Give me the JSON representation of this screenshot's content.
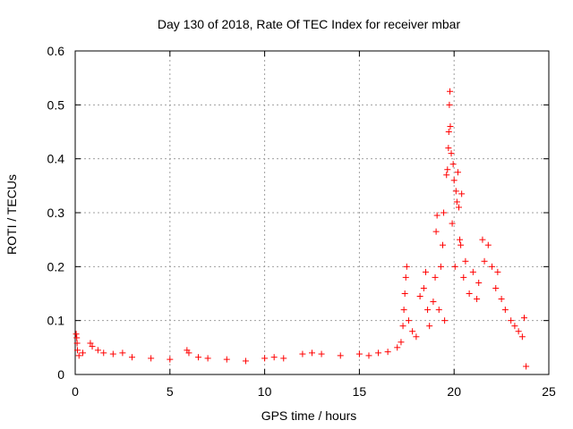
{
  "chart_data": {
    "type": "scatter",
    "title": "Day 130 of 2018, Rate Of TEC Index for receiver mbar",
    "xlabel": "GPS time / hours",
    "ylabel": "ROTI / TECUs",
    "xlim": [
      0,
      25
    ],
    "ylim": [
      0,
      0.6
    ],
    "xticks": [
      0,
      5,
      10,
      15,
      20,
      25
    ],
    "yticks": [
      0,
      0.1,
      0.2,
      0.3,
      0.4,
      0.5,
      0.6
    ],
    "grid": true,
    "marker": "+",
    "color": "#ff0000",
    "series": [
      {
        "name": "ROTI",
        "points": [
          [
            0.05,
            0.075
          ],
          [
            0.08,
            0.068
          ],
          [
            0.1,
            0.058
          ],
          [
            0.12,
            0.045
          ],
          [
            0.2,
            0.035
          ],
          [
            0.4,
            0.04
          ],
          [
            0.8,
            0.058
          ],
          [
            0.9,
            0.052
          ],
          [
            1.2,
            0.045
          ],
          [
            1.5,
            0.04
          ],
          [
            2.0,
            0.038
          ],
          [
            2.5,
            0.04
          ],
          [
            3.0,
            0.032
          ],
          [
            4.0,
            0.03
          ],
          [
            5.0,
            0.028
          ],
          [
            5.9,
            0.045
          ],
          [
            6.0,
            0.04
          ],
          [
            6.5,
            0.032
          ],
          [
            7.0,
            0.03
          ],
          [
            8.0,
            0.028
          ],
          [
            9.0,
            0.025
          ],
          [
            10.0,
            0.03
          ],
          [
            10.5,
            0.032
          ],
          [
            11.0,
            0.03
          ],
          [
            12.0,
            0.038
          ],
          [
            12.5,
            0.04
          ],
          [
            13.0,
            0.038
          ],
          [
            14.0,
            0.035
          ],
          [
            15.0,
            0.038
          ],
          [
            15.5,
            0.035
          ],
          [
            16.0,
            0.04
          ],
          [
            16.5,
            0.042
          ],
          [
            17.0,
            0.05
          ],
          [
            17.2,
            0.06
          ],
          [
            17.3,
            0.09
          ],
          [
            17.35,
            0.12
          ],
          [
            17.4,
            0.15
          ],
          [
            17.45,
            0.18
          ],
          [
            17.5,
            0.2
          ],
          [
            17.6,
            0.1
          ],
          [
            17.8,
            0.08
          ],
          [
            18.0,
            0.07
          ],
          [
            18.2,
            0.145
          ],
          [
            18.4,
            0.16
          ],
          [
            18.5,
            0.19
          ],
          [
            18.6,
            0.12
          ],
          [
            18.7,
            0.09
          ],
          [
            18.9,
            0.135
          ],
          [
            19.0,
            0.18
          ],
          [
            19.05,
            0.265
          ],
          [
            19.1,
            0.295
          ],
          [
            19.2,
            0.12
          ],
          [
            19.3,
            0.2
          ],
          [
            19.4,
            0.24
          ],
          [
            19.45,
            0.3
          ],
          [
            19.5,
            0.1
          ],
          [
            19.6,
            0.37
          ],
          [
            19.65,
            0.38
          ],
          [
            19.7,
            0.42
          ],
          [
            19.72,
            0.45
          ],
          [
            19.75,
            0.5
          ],
          [
            19.78,
            0.525
          ],
          [
            19.8,
            0.46
          ],
          [
            19.85,
            0.41
          ],
          [
            19.9,
            0.28
          ],
          [
            19.95,
            0.39
          ],
          [
            20.0,
            0.36
          ],
          [
            20.05,
            0.2
          ],
          [
            20.1,
            0.34
          ],
          [
            20.15,
            0.32
          ],
          [
            20.2,
            0.375
          ],
          [
            20.25,
            0.31
          ],
          [
            20.3,
            0.25
          ],
          [
            20.35,
            0.24
          ],
          [
            20.4,
            0.335
          ],
          [
            20.5,
            0.18
          ],
          [
            20.6,
            0.21
          ],
          [
            20.8,
            0.15
          ],
          [
            21.0,
            0.19
          ],
          [
            21.2,
            0.14
          ],
          [
            21.3,
            0.17
          ],
          [
            21.5,
            0.25
          ],
          [
            21.6,
            0.21
          ],
          [
            21.8,
            0.24
          ],
          [
            22.0,
            0.2
          ],
          [
            22.2,
            0.16
          ],
          [
            22.3,
            0.19
          ],
          [
            22.5,
            0.14
          ],
          [
            22.7,
            0.12
          ],
          [
            23.0,
            0.1
          ],
          [
            23.2,
            0.09
          ],
          [
            23.4,
            0.08
          ],
          [
            23.6,
            0.07
          ],
          [
            23.7,
            0.105
          ],
          [
            23.8,
            0.015
          ]
        ]
      }
    ]
  }
}
